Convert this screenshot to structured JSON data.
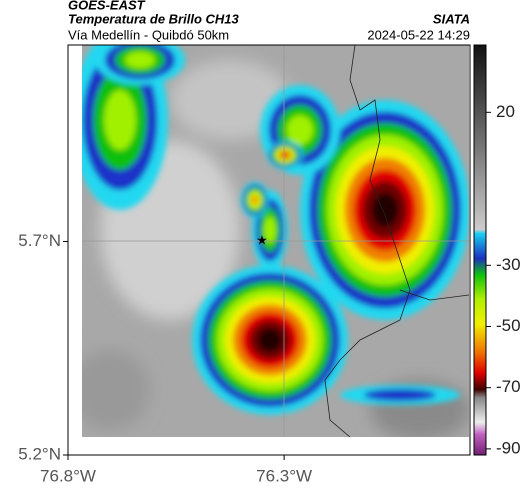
{
  "header": {
    "source": "GOES-EAST",
    "title": "Temperatura de Brillo CH13",
    "route": "Vía Medellín - Quibdó 50km",
    "agency": "SIATA",
    "datetime": "2024-05-22 14:29"
  },
  "map": {
    "xlim": [
      -76.8,
      -75.87
    ],
    "ylim": [
      5.2,
      6.16
    ],
    "xticks": [
      {
        "value": -76.8,
        "label": "76.8°W"
      },
      {
        "value": -76.3,
        "label": "76.3°W"
      }
    ],
    "yticks": [
      {
        "value": 5.7,
        "label": "5.7°N"
      },
      {
        "value": 5.2,
        "label": "5.2°N"
      }
    ]
  },
  "colorbar": {
    "lim": [
      -92,
      42
    ],
    "ticks": [
      20,
      -30,
      -50,
      -70,
      -90
    ]
  }
}
